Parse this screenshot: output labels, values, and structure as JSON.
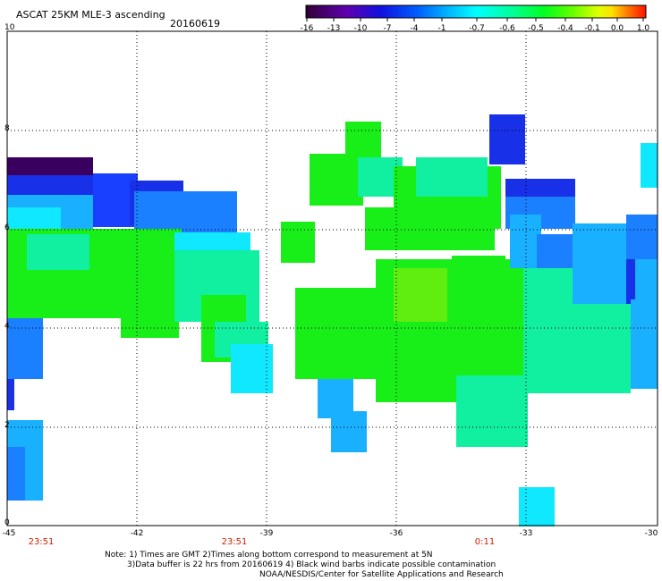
{
  "header": {
    "title": "ASCAT 25KM MLE-3 ascending",
    "date": "20160619"
  },
  "colorbar": {
    "labels": [
      "-16",
      "-13",
      "-10",
      "-7",
      "-4",
      "-1",
      "-0.7",
      "-0.6",
      "-0.5",
      "-0.4",
      "-0.1",
      "0.0",
      "1.0"
    ],
    "colors": [
      "#30003a",
      "#5a00a0",
      "#1a00d0",
      "#0030ff",
      "#0090ff",
      "#00d8ff",
      "#00ffff",
      "#00ff80",
      "#00ff00",
      "#80ff00",
      "#ffff00",
      "#ff8000",
      "#ff2000"
    ]
  },
  "axes": {
    "y_labels": [
      "10",
      "8",
      "6",
      "4",
      "2",
      "0"
    ],
    "x_labels": [
      "-45",
      "-42",
      "-39",
      "-36",
      "-33",
      "-30"
    ],
    "times": [
      "23:51",
      "23:51",
      "0:11"
    ]
  },
  "notes": {
    "line1": "Note: 1) Times are GMT 2)Times along bottom correspond to measurement at 5N",
    "line2": "3)Data buffer is 22 hrs from 20160619 4) Black wind barbs indicate possible contamination",
    "line3": "NOAA/NESDIS/Center for Satellite Applications and Research"
  },
  "colors": {
    "deep_purple": "#3a0060",
    "purple": "#5000b0",
    "blue": "#1030e8",
    "mid_blue": "#1a70ff",
    "sky_blue": "#18b0ff",
    "cyan": "#10e8ff",
    "aqua_green": "#10f0a0",
    "green": "#18ee18",
    "yellow_green": "#70f000"
  }
}
